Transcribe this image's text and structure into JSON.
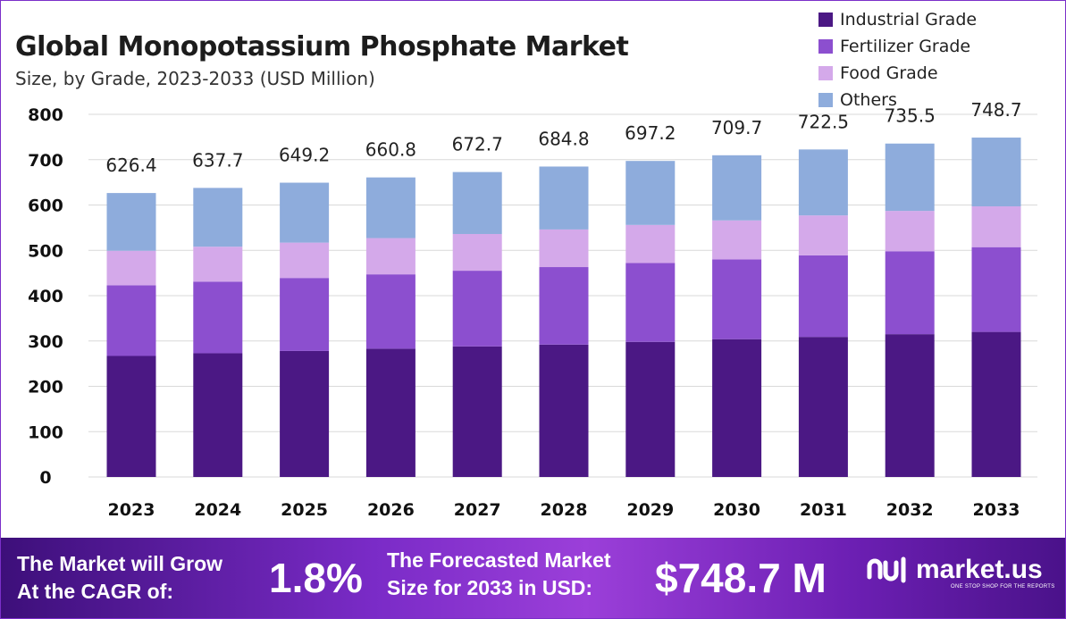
{
  "header": {
    "title": "Global Monopotassium Phosphate Market",
    "subtitle": "Size, by Grade, 2023-2033 (USD Million)"
  },
  "colors": {
    "industrial": "#4b1884",
    "fertilizer": "#8c4fcf",
    "food": "#d4a9ea",
    "others": "#8eacdc",
    "grid": "#d9d9d9"
  },
  "legend": [
    {
      "label": "Industrial Grade",
      "color": "#4b1884"
    },
    {
      "label": "Fertilizer Grade",
      "color": "#8c4fcf"
    },
    {
      "label": "Food Grade",
      "color": "#d4a9ea"
    },
    {
      "label": "Others",
      "color": "#8eacdc"
    }
  ],
  "chart_data": {
    "type": "bar",
    "stacked": true,
    "title": "Global Monopotassium Phosphate Market",
    "subtitle": "Size, by Grade, 2023-2033 (USD Million)",
    "xlabel": "",
    "ylabel": "",
    "ylim": [
      0,
      800
    ],
    "yticks": [
      0,
      100,
      200,
      300,
      400,
      500,
      600,
      700,
      800
    ],
    "grid": true,
    "legend_position": "top-right",
    "categories": [
      "2023",
      "2024",
      "2025",
      "2026",
      "2027",
      "2028",
      "2029",
      "2030",
      "2031",
      "2032",
      "2033"
    ],
    "series": [
      {
        "name": "Industrial Grade",
        "values": [
          267,
          273,
          278,
          283,
          288,
          292,
          298,
          304,
          309,
          315,
          320
        ]
      },
      {
        "name": "Fertilizer Grade",
        "values": [
          156,
          158,
          161,
          164,
          167,
          171,
          174,
          176,
          180,
          183,
          187
        ]
      },
      {
        "name": "Food Grade",
        "values": [
          76,
          77,
          78,
          80,
          81,
          83,
          84,
          86,
          88,
          89,
          90
        ]
      },
      {
        "name": "Others",
        "values": [
          127.4,
          129.7,
          132.2,
          133.8,
          136.7,
          138.8,
          141.2,
          143.7,
          145.5,
          148.5,
          151.7
        ]
      }
    ],
    "totals": [
      626.4,
      637.7,
      649.2,
      660.8,
      672.7,
      684.8,
      697.2,
      709.7,
      722.5,
      735.5,
      748.7
    ],
    "total_labels": [
      "626.4",
      "637.7",
      "649.2",
      "660.8",
      "672.7",
      "684.8",
      "697.2",
      "709.7",
      "722.5",
      "735.5",
      "748.7"
    ]
  },
  "banner": {
    "cagr_text_line1": "The Market will Grow",
    "cagr_text_line2": "At the CAGR of:",
    "cagr_value": "1.8%",
    "forecast_text_line1": "The Forecasted Market",
    "forecast_text_line2": "Size for 2033 in USD:",
    "forecast_value": "$748.7 M",
    "brand_name": "market.us",
    "brand_tagline": "ONE STOP SHOP FOR THE REPORTS"
  }
}
